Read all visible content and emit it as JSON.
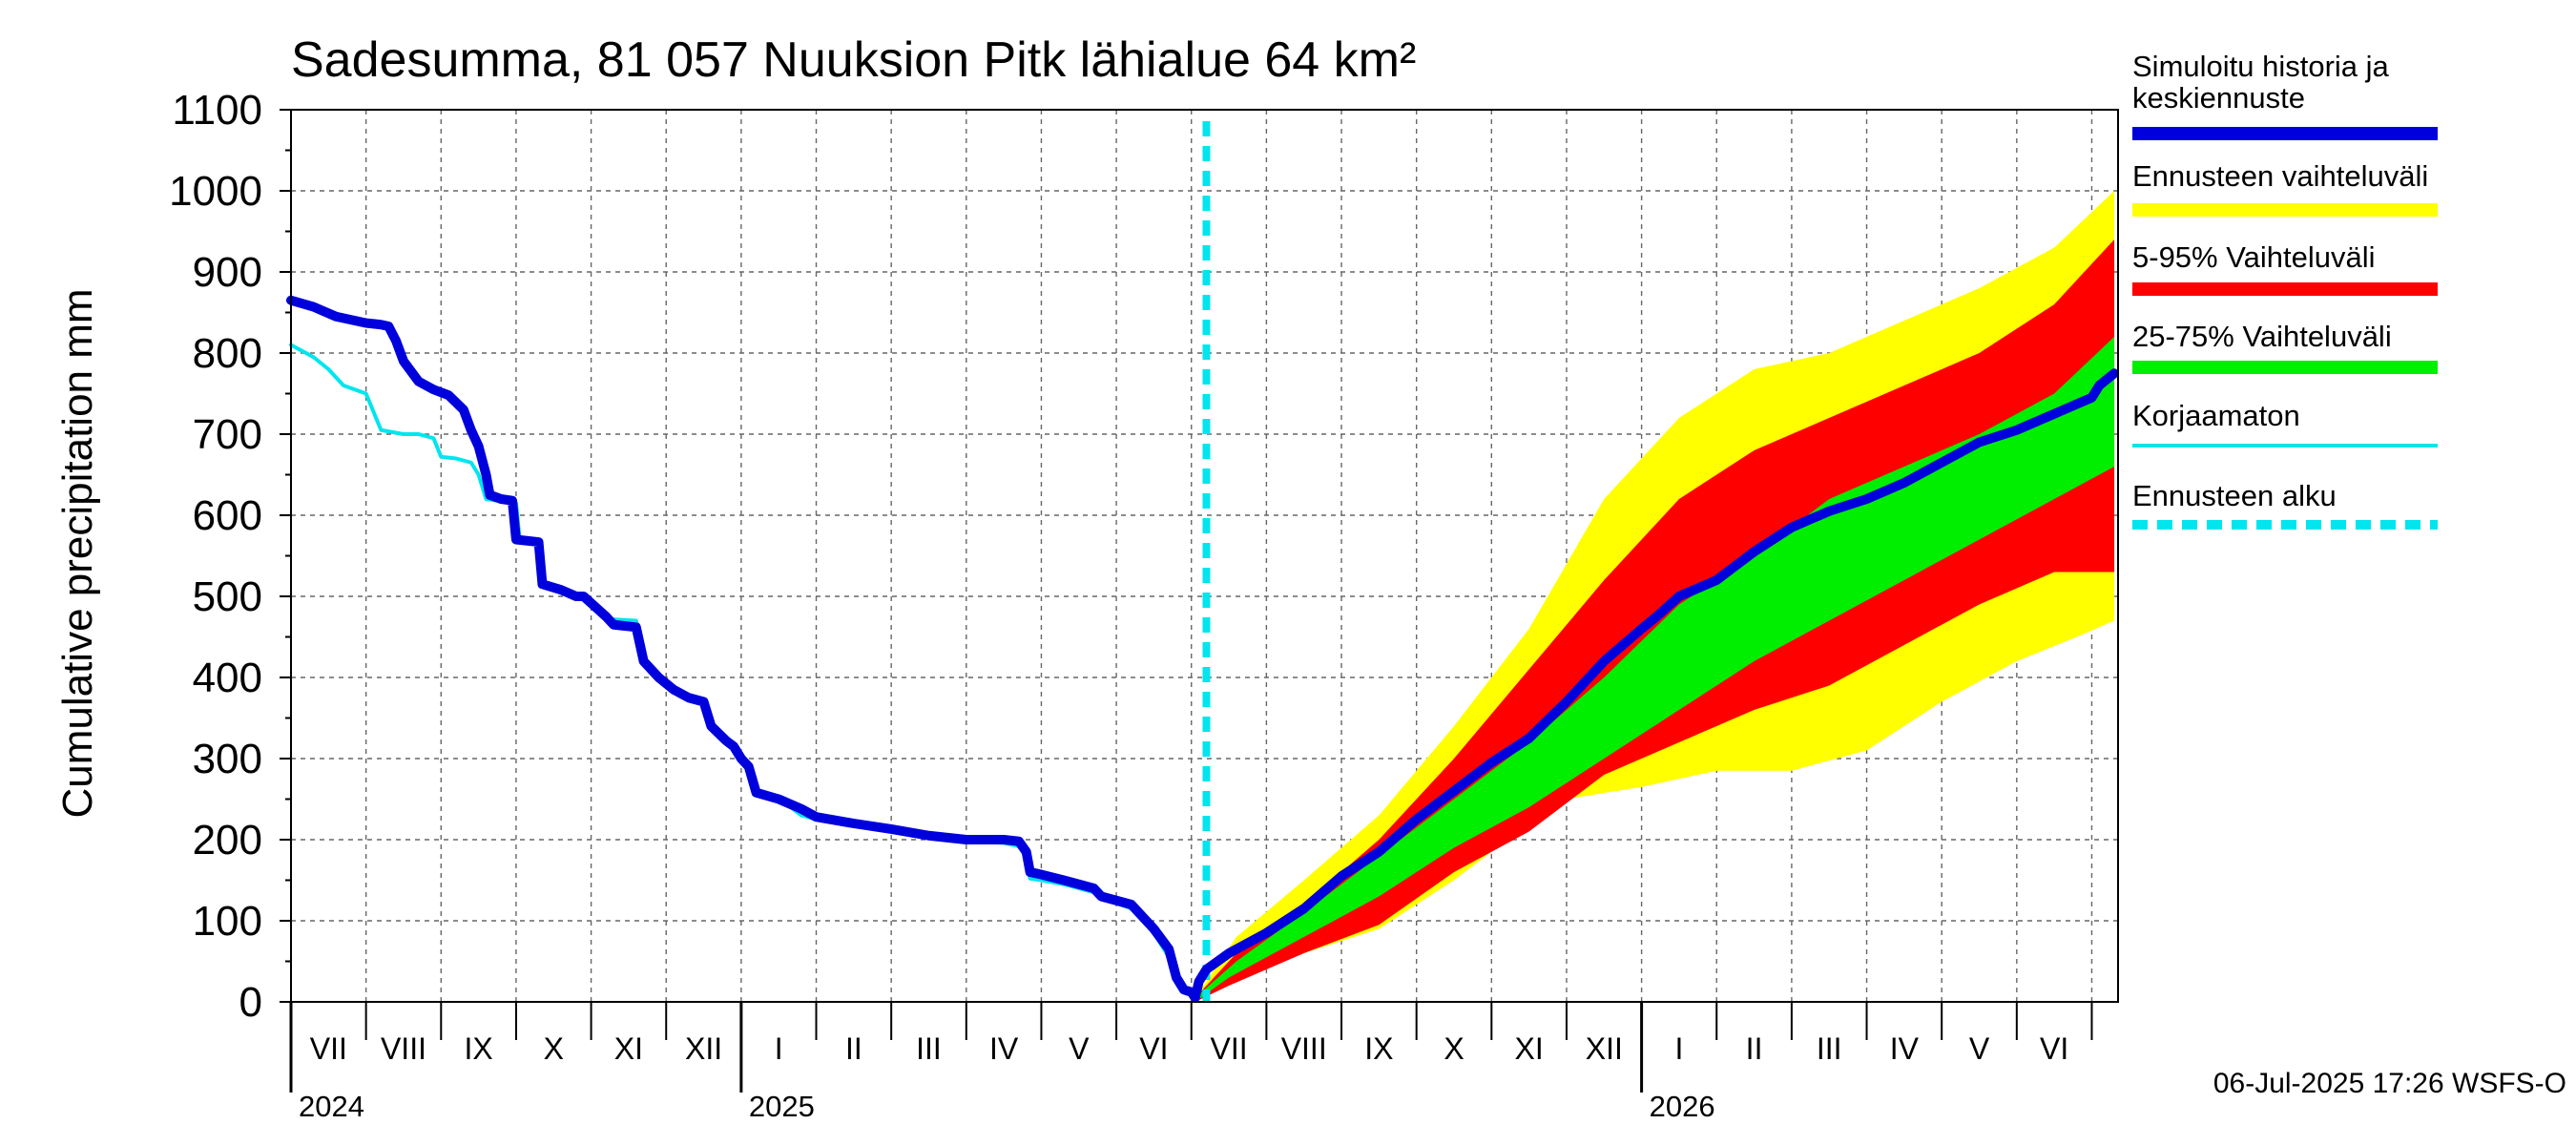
{
  "chart_data": {
    "type": "area",
    "title": "Sadesumma, 81 057 Nuuksion Pitk lähialue 64 km²",
    "ylabel": "Cumulative precipitation   mm",
    "ylim": [
      0,
      1100
    ],
    "yticks": [
      "0",
      "100",
      "200",
      "300",
      "400",
      "500",
      "600",
      "700",
      "800",
      "900",
      "1000",
      "1100"
    ],
    "grid": true,
    "x_months": [
      "VII",
      "VIII",
      "IX",
      "X",
      "XI",
      "XII",
      "I",
      "II",
      "III",
      "IV",
      "V",
      "VI",
      "VII",
      "VIII",
      "IX",
      "X",
      "XI",
      "XII",
      "I",
      "II",
      "III",
      "IV",
      "V",
      "VI"
    ],
    "x_years": [
      {
        "label": "2024",
        "month_index": 0
      },
      {
        "label": "2025",
        "month_index": 6
      },
      {
        "label": "2026",
        "month_index": 18
      }
    ],
    "forecast_start_month": 12.2,
    "series": [
      {
        "name": "Simuloitu historia ja keskiennuste",
        "color": "#0000dd",
        "points": [
          [
            0,
            865
          ],
          [
            0.3,
            857
          ],
          [
            0.6,
            845
          ],
          [
            1,
            837
          ],
          [
            1.1,
            836
          ],
          [
            1.2,
            835
          ],
          [
            1.3,
            833
          ],
          [
            1.4,
            815
          ],
          [
            1.5,
            790
          ],
          [
            1.7,
            765
          ],
          [
            1.9,
            755
          ],
          [
            2.1,
            748
          ],
          [
            2.3,
            730
          ],
          [
            2.4,
            705
          ],
          [
            2.5,
            685
          ],
          [
            2.6,
            650
          ],
          [
            2.65,
            625
          ],
          [
            2.8,
            620
          ],
          [
            2.95,
            618
          ],
          [
            3,
            570
          ],
          [
            3.3,
            567
          ],
          [
            3.35,
            515
          ],
          [
            3.6,
            508
          ],
          [
            3.8,
            500
          ],
          [
            3.9,
            500
          ],
          [
            4.2,
            475
          ],
          [
            4.3,
            465
          ],
          [
            4.6,
            462
          ],
          [
            4.7,
            420
          ],
          [
            4.9,
            400
          ],
          [
            5.1,
            385
          ],
          [
            5.3,
            375
          ],
          [
            5.5,
            370
          ],
          [
            5.6,
            340
          ],
          [
            5.8,
            322
          ],
          [
            5.9,
            315
          ],
          [
            6,
            300
          ],
          [
            6.1,
            290
          ],
          [
            6.2,
            258
          ],
          [
            6.5,
            250
          ],
          [
            6.8,
            238
          ],
          [
            7,
            228
          ],
          [
            7.5,
            220
          ],
          [
            8,
            213
          ],
          [
            8.5,
            205
          ],
          [
            9,
            200
          ],
          [
            9.5,
            200
          ],
          [
            9.7,
            198
          ],
          [
            9.8,
            185
          ],
          [
            9.85,
            160
          ],
          [
            10,
            157
          ],
          [
            10.3,
            150
          ],
          [
            10.5,
            145
          ],
          [
            10.7,
            140
          ],
          [
            10.8,
            130
          ],
          [
            11,
            125
          ],
          [
            11.2,
            120
          ],
          [
            11.3,
            110
          ],
          [
            11.5,
            90
          ],
          [
            11.7,
            65
          ],
          [
            11.8,
            30
          ],
          [
            11.9,
            15
          ],
          [
            12,
            12
          ],
          [
            12.05,
            5
          ],
          [
            12.1,
            25
          ],
          [
            12.2,
            40
          ],
          [
            12.5,
            60
          ],
          [
            13,
            85
          ],
          [
            13.5,
            115
          ],
          [
            14,
            155
          ],
          [
            14.5,
            185
          ],
          [
            15,
            225
          ],
          [
            15.5,
            260
          ],
          [
            16,
            295
          ],
          [
            16.5,
            325
          ],
          [
            17,
            370
          ],
          [
            17.5,
            420
          ],
          [
            18,
            460
          ],
          [
            18.2,
            475
          ],
          [
            18.5,
            500
          ],
          [
            19,
            520
          ],
          [
            19.5,
            555
          ],
          [
            20,
            585
          ],
          [
            20.5,
            605
          ],
          [
            21,
            620
          ],
          [
            21.5,
            640
          ],
          [
            22,
            665
          ],
          [
            22.5,
            690
          ],
          [
            23,
            705
          ],
          [
            23.5,
            725
          ],
          [
            24,
            745
          ],
          [
            24.1,
            760
          ],
          [
            24.3,
            775
          ]
        ]
      },
      {
        "name": "Korjaamaton",
        "color": "#00e5ee",
        "points": [
          [
            0,
            810
          ],
          [
            0.3,
            795
          ],
          [
            0.5,
            780
          ],
          [
            0.7,
            760
          ],
          [
            1,
            750
          ],
          [
            1.2,
            705
          ],
          [
            1.5,
            700
          ],
          [
            1.7,
            700
          ],
          [
            1.9,
            695
          ],
          [
            2,
            672
          ],
          [
            2.2,
            670
          ],
          [
            2.4,
            665
          ],
          [
            2.5,
            650
          ],
          [
            2.6,
            620
          ],
          [
            3,
            615
          ],
          [
            3.05,
            568
          ],
          [
            3.3,
            565
          ],
          [
            3.4,
            510
          ],
          [
            3.7,
            505
          ],
          [
            4,
            495
          ],
          [
            4.2,
            472
          ],
          [
            4.6,
            470
          ],
          [
            4.7,
            420
          ],
          [
            4.9,
            402
          ],
          [
            5.2,
            380
          ],
          [
            5.5,
            372
          ],
          [
            5.6,
            342
          ],
          [
            5.8,
            325
          ],
          [
            6,
            303
          ],
          [
            6.2,
            262
          ],
          [
            6.5,
            252
          ],
          [
            6.8,
            230
          ],
          [
            7,
            225
          ],
          [
            7.5,
            218
          ],
          [
            8,
            210
          ],
          [
            8.5,
            203
          ],
          [
            9,
            198
          ],
          [
            9.5,
            196
          ],
          [
            9.7,
            192
          ],
          [
            9.8,
            178
          ],
          [
            9.85,
            152
          ],
          [
            10,
            150
          ],
          [
            10.3,
            145
          ],
          [
            10.5,
            140
          ],
          [
            10.7,
            135
          ],
          [
            10.8,
            128
          ],
          [
            11,
            122
          ],
          [
            11.2,
            115
          ],
          [
            11.3,
            105
          ],
          [
            11.5,
            85
          ],
          [
            11.7,
            55
          ],
          [
            11.8,
            25
          ],
          [
            11.9,
            12
          ],
          [
            12.05,
            8
          ]
        ]
      }
    ],
    "bands": [
      {
        "name": "Ennusteen vaihteluväli",
        "color": "#ffff00",
        "upper": [
          [
            12.05,
            5
          ],
          [
            12.6,
            80
          ],
          [
            13.5,
            150
          ],
          [
            14.5,
            230
          ],
          [
            15.5,
            340
          ],
          [
            16.5,
            460
          ],
          [
            17.5,
            620
          ],
          [
            18.5,
            720
          ],
          [
            19.5,
            780
          ],
          [
            20.5,
            800
          ],
          [
            21.5,
            840
          ],
          [
            22.5,
            880
          ],
          [
            23.5,
            930
          ],
          [
            24.3,
            1000
          ]
        ],
        "lower": [
          [
            12.05,
            0
          ],
          [
            12.5,
            30
          ],
          [
            13.5,
            60
          ],
          [
            14.5,
            90
          ],
          [
            15.5,
            150
          ],
          [
            16.5,
            220
          ],
          [
            17,
            250
          ],
          [
            18,
            265
          ],
          [
            19,
            285
          ],
          [
            20,
            285
          ],
          [
            21,
            310
          ],
          [
            22,
            370
          ],
          [
            23,
            420
          ],
          [
            23.8,
            450
          ],
          [
            24.3,
            470
          ]
        ]
      },
      {
        "name": "5-95% Vaihteluväli",
        "color": "#ff0000",
        "upper": [
          [
            12.05,
            5
          ],
          [
            12.6,
            60
          ],
          [
            13.5,
            120
          ],
          [
            14.5,
            200
          ],
          [
            15.5,
            300
          ],
          [
            16.5,
            410
          ],
          [
            17.5,
            520
          ],
          [
            18.5,
            620
          ],
          [
            19.5,
            680
          ],
          [
            20.5,
            720
          ],
          [
            21.5,
            760
          ],
          [
            22.5,
            800
          ],
          [
            23.5,
            860
          ],
          [
            24.3,
            940
          ]
        ],
        "lower": [
          [
            12.05,
            0
          ],
          [
            12.5,
            20
          ],
          [
            13.5,
            60
          ],
          [
            14.5,
            95
          ],
          [
            15.5,
            160
          ],
          [
            16.5,
            210
          ],
          [
            17.5,
            280
          ],
          [
            18.5,
            320
          ],
          [
            19.5,
            360
          ],
          [
            20.5,
            390
          ],
          [
            21.5,
            440
          ],
          [
            22.5,
            490
          ],
          [
            23.5,
            530
          ],
          [
            24.3,
            530
          ]
        ]
      },
      {
        "name": "25-75% Vaihteluväli",
        "color": "#00ee00",
        "upper": [
          [
            12.05,
            5
          ],
          [
            12.6,
            50
          ],
          [
            13.5,
            110
          ],
          [
            14.5,
            180
          ],
          [
            15.5,
            250
          ],
          [
            16.5,
            320
          ],
          [
            17.5,
            400
          ],
          [
            18.5,
            490
          ],
          [
            19.5,
            550
          ],
          [
            20.5,
            620
          ],
          [
            21.5,
            660
          ],
          [
            22.5,
            700
          ],
          [
            23.5,
            750
          ],
          [
            24.3,
            820
          ]
        ],
        "lower": [
          [
            12.05,
            0
          ],
          [
            12.5,
            30
          ],
          [
            13.5,
            80
          ],
          [
            14.5,
            130
          ],
          [
            15.5,
            190
          ],
          [
            16.5,
            240
          ],
          [
            17.5,
            300
          ],
          [
            18.5,
            360
          ],
          [
            19.5,
            420
          ],
          [
            20.5,
            470
          ],
          [
            21.5,
            520
          ],
          [
            22.5,
            570
          ],
          [
            23.5,
            620
          ],
          [
            24.3,
            660
          ]
        ]
      }
    ],
    "legend": [
      {
        "label": "Simuloitu historia ja keskiennuste",
        "color": "#0000dd",
        "style": "thick-line"
      },
      {
        "label": "Ennusteen vaihteluväli",
        "color": "#ffff00",
        "style": "thick-line"
      },
      {
        "label": "5-95% Vaihteluväli",
        "color": "#ff0000",
        "style": "thick-line"
      },
      {
        "label": "25-75% Vaihteluväli",
        "color": "#00ee00",
        "style": "thick-line"
      },
      {
        "label": "Korjaamaton",
        "color": "#00e5ee",
        "style": "thin-line"
      },
      {
        "label": "Ennusteen alku",
        "color": "#00e5ee",
        "style": "dashed-line"
      }
    ],
    "legend_position": "right",
    "timestamp": "06-Jul-2025 17:26 WSFS-O"
  }
}
